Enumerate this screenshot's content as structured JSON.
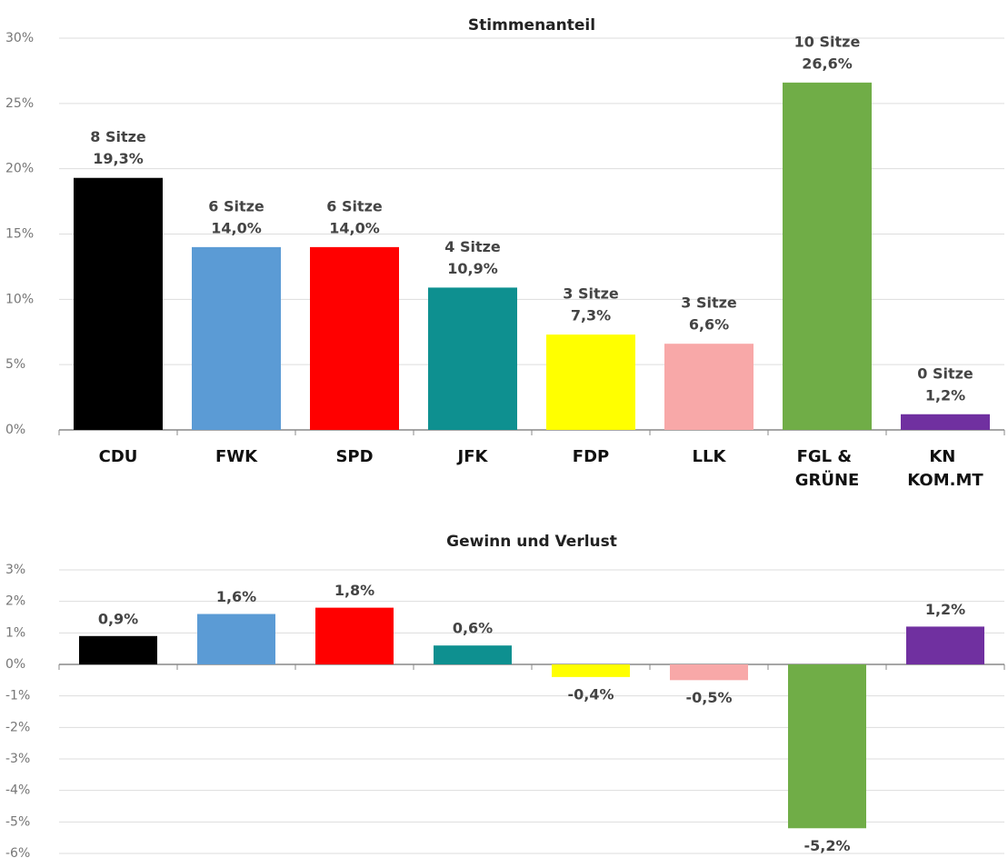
{
  "chart_data": [
    {
      "type": "bar",
      "title": "Stimmenanteil",
      "categories": [
        "CDU",
        "FWK",
        "SPD",
        "JFK",
        "FDP",
        "LLK",
        "FGL & GRÜNE",
        "KN KOM.MT"
      ],
      "values": [
        19.3,
        14.0,
        14.0,
        10.9,
        7.3,
        6.6,
        26.6,
        1.2
      ],
      "value_labels": [
        "19,3%",
        "14,0%",
        "14,0%",
        "10,9%",
        "7,3%",
        "6,6%",
        "26,6%",
        "1,2%"
      ],
      "seat_labels": [
        "8 Sitze",
        "6 Sitze",
        "6 Sitze",
        "4 Sitze",
        "3 Sitze",
        "3 Sitze",
        "10 Sitze",
        "0 Sitze"
      ],
      "colors": [
        "#000000",
        "#5b9bd5",
        "#ff0000",
        "#0e9090",
        "#ffff00",
        "#f8a8a8",
        "#70ad47",
        "#7030a0"
      ],
      "ylim": [
        0,
        30
      ],
      "yticks": [
        {
          "value": 0,
          "label": "0%"
        },
        {
          "value": 5,
          "label": "5%"
        },
        {
          "value": 10,
          "label": "10%"
        },
        {
          "value": 15,
          "label": "15%"
        },
        {
          "value": 20,
          "label": "20%"
        },
        {
          "value": 25,
          "label": "25%"
        },
        {
          "value": 30,
          "label": "30%"
        }
      ],
      "grid": true
    },
    {
      "type": "bar",
      "title": "Gewinn und Verlust",
      "values": [
        0.9,
        1.6,
        1.8,
        0.6,
        -0.4,
        -0.5,
        -5.2,
        1.2
      ],
      "value_labels": [
        "0,9%",
        "1,6%",
        "1,8%",
        "0,6%",
        "-0,4%",
        "-0,5%",
        "-5,2%",
        "1,2%"
      ],
      "colors": [
        "#000000",
        "#5b9bd5",
        "#ff0000",
        "#0e9090",
        "#ffff00",
        "#f8a8a8",
        "#70ad47",
        "#7030a0"
      ],
      "ylim": [
        -6,
        3
      ],
      "yticks": [
        {
          "value": -6,
          "label": "-6%"
        },
        {
          "value": -5,
          "label": "-5%"
        },
        {
          "value": -4,
          "label": "-4%"
        },
        {
          "value": -3,
          "label": "-3%"
        },
        {
          "value": -2,
          "label": "-2%"
        },
        {
          "value": -1,
          "label": "-1%"
        },
        {
          "value": 0,
          "label": "0%"
        },
        {
          "value": 1,
          "label": "1%"
        },
        {
          "value": 2,
          "label": "2%"
        },
        {
          "value": 3,
          "label": "3%"
        }
      ],
      "grid": true
    }
  ]
}
